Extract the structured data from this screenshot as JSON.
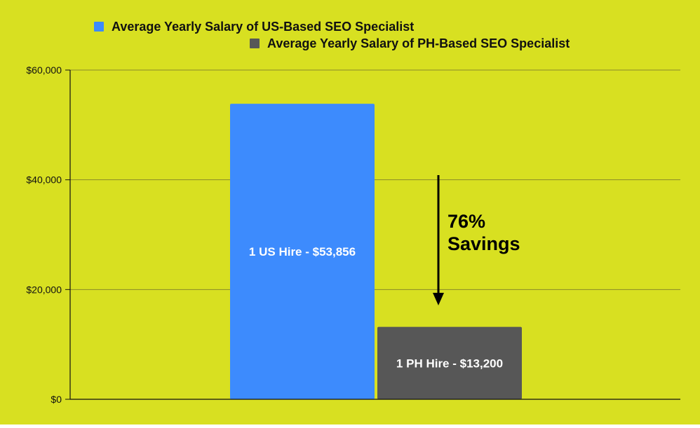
{
  "colors": {
    "background": "#d8e021",
    "us": "#3d8bfd",
    "ph": "#575757",
    "grid": "#8a8a2a",
    "axis": "#111111",
    "text": "#111111",
    "bar_label": "#ffffff"
  },
  "chart_data": {
    "type": "bar",
    "title": "",
    "xlabel": "",
    "ylabel": "",
    "ylim": [
      0,
      60000
    ],
    "yticks": [
      0,
      20000,
      40000,
      60000
    ],
    "ytick_labels": [
      "$0",
      "$20,000",
      "$40,000",
      "$60,000"
    ],
    "grid": true,
    "legend_position": "top",
    "series": [
      {
        "name": "Average Yearly Salary of US-Based SEO Specialist",
        "values": [
          53856
        ],
        "label": "1 US Hire - $53,856",
        "color": "#3d8bfd"
      },
      {
        "name": "Average Yearly Salary of PH-Based SEO Specialist",
        "values": [
          13200
        ],
        "label": "1 PH Hire - $13,200",
        "color": "#575757"
      }
    ],
    "annotation": {
      "line1": "76%",
      "line2": "Savings"
    }
  }
}
